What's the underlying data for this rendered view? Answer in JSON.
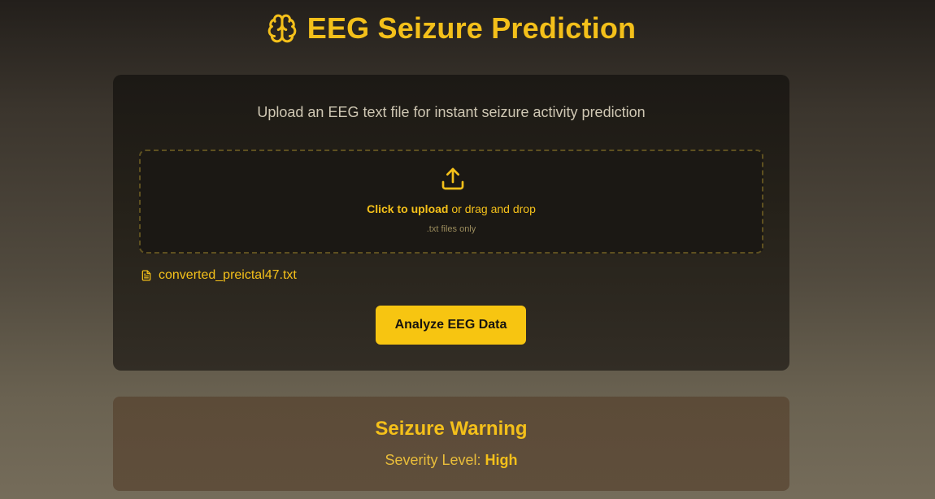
{
  "header": {
    "title": "EEG Seizure Prediction",
    "icon": "brain-icon"
  },
  "upload_card": {
    "subtitle": "Upload an EEG text file for instant seizure activity prediction",
    "dropzone": {
      "icon": "upload-icon",
      "click_label": "Click to upload",
      "drag_label": " or drag and drop",
      "hint": ".txt files only"
    },
    "selected_file": {
      "icon": "file-icon",
      "name": "converted_preictal47.txt"
    },
    "analyze_label": "Analyze EEG Data"
  },
  "result": {
    "title": "Seizure Warning",
    "severity_label": "Severity Level: ",
    "severity_value": "High"
  },
  "colors": {
    "accent": "#f4c01a",
    "button": "#f7c511",
    "card_bg": "#1c1915",
    "result_bg": "#5c4b38"
  }
}
